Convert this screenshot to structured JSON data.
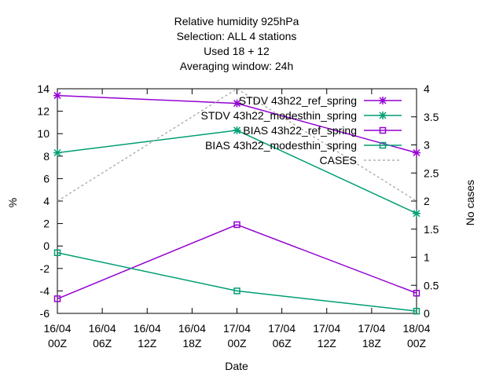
{
  "chart_data": {
    "type": "line",
    "title_lines": [
      "Relative humidity 925hPa",
      "Selection: ALL      4 stations",
      "Used  18  + 12",
      "Averaging window: 24h"
    ],
    "xlabel": "Date",
    "ylabel": "%",
    "y2label": "No cases",
    "ylim": [
      -6,
      14
    ],
    "y_ticks": [
      "-6",
      "-4",
      "-2",
      "0",
      "2",
      "4",
      "6",
      "8",
      "10",
      "12",
      "14"
    ],
    "y2lim": [
      0,
      4
    ],
    "y2_ticks": [
      "0",
      "0.5",
      "1",
      "1.5",
      "2",
      "2.5",
      "3",
      "3.5",
      "4"
    ],
    "x_ticks": [
      {
        "date": "16/04",
        "hour": "00Z"
      },
      {
        "date": "16/04",
        "hour": "06Z"
      },
      {
        "date": "16/04",
        "hour": "12Z"
      },
      {
        "date": "16/04",
        "hour": "18Z"
      },
      {
        "date": "17/04",
        "hour": "00Z"
      },
      {
        "date": "17/04",
        "hour": "06Z"
      },
      {
        "date": "17/04",
        "hour": "12Z"
      },
      {
        "date": "17/04",
        "hour": "18Z"
      },
      {
        "date": "18/04",
        "hour": "00Z"
      }
    ],
    "x_points": [
      "16/04 00Z",
      "17/04 00Z",
      "18/04 00Z"
    ],
    "legend_position": "top-right",
    "series": [
      {
        "name": "STDV 43h22_ref_spring",
        "axis": "y",
        "marker": "star",
        "color": "#9400d3",
        "values": [
          13.4,
          12.7,
          8.3
        ]
      },
      {
        "name": "STDV 43h22_modesthin_spring",
        "axis": "y",
        "marker": "star",
        "color": "#009e73",
        "values": [
          8.3,
          10.3,
          2.9
        ]
      },
      {
        "name": "BIAS 43h22_ref_spring",
        "axis": "y",
        "marker": "square",
        "color": "#9400d3",
        "values": [
          -4.7,
          1.9,
          -4.2
        ]
      },
      {
        "name": "BIAS 43h22_modesthin_spring",
        "axis": "y",
        "marker": "square",
        "color": "#009e73",
        "values": [
          -0.6,
          -4.0,
          -5.8
        ]
      },
      {
        "name": "CASES",
        "axis": "y2",
        "marker": "none",
        "color": "#a0a0a0",
        "dashed": true,
        "values": [
          2,
          4,
          2
        ]
      }
    ]
  }
}
